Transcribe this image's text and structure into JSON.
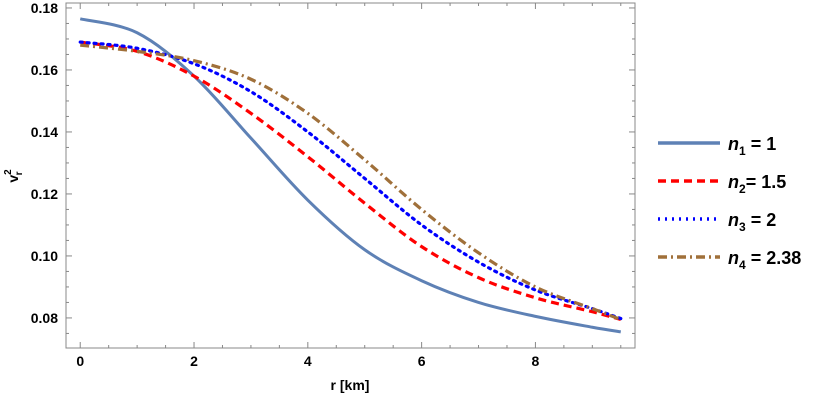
{
  "chart_data": {
    "type": "line",
    "xlabel": "r [km]",
    "ylabel": "v_r^2",
    "xlim": [
      -0.25,
      9.75
    ],
    "ylim": [
      0.0703,
      0.1816
    ],
    "xticks": [
      "0",
      "2",
      "4",
      "6",
      "8"
    ],
    "yticks": [
      "0.08",
      "0.10",
      "0.12",
      "0.14",
      "0.16",
      "0.18"
    ],
    "grid": false,
    "legend_placement": "right",
    "x": [
      0,
      1,
      2,
      3,
      4,
      5,
      6,
      7,
      8,
      9,
      9.5
    ],
    "series": [
      {
        "name": "n_1 = 1",
        "sub": "1",
        "rest": " = 1",
        "color": "#5e81b5",
        "style": "solid",
        "values": [
          0.1765,
          0.172,
          0.158,
          0.138,
          0.118,
          0.102,
          0.092,
          0.085,
          0.0805,
          0.077,
          0.0755
        ]
      },
      {
        "name": "n_2= 1.5",
        "sub": "2",
        "rest": "= 1.5",
        "color": "#ff0000",
        "style": "dashed",
        "values": [
          0.169,
          0.166,
          0.158,
          0.146,
          0.132,
          0.117,
          0.103,
          0.093,
          0.0865,
          0.082,
          0.0795
        ]
      },
      {
        "name": "n_3 = 2",
        "sub": "3",
        "rest": " = 2",
        "color": "#0000ff",
        "style": "dotted",
        "values": [
          0.169,
          0.167,
          0.162,
          0.153,
          0.14,
          0.125,
          0.11,
          0.098,
          0.089,
          0.083,
          0.0798
        ]
      },
      {
        "name": "n_4 = 2.38",
        "sub": "4",
        "rest": " = 2.38",
        "color": "#a0703a",
        "style": "dashdot",
        "values": [
          0.168,
          0.166,
          0.163,
          0.157,
          0.146,
          0.131,
          0.115,
          0.101,
          0.09,
          0.083,
          0.0795
        ]
      }
    ]
  }
}
